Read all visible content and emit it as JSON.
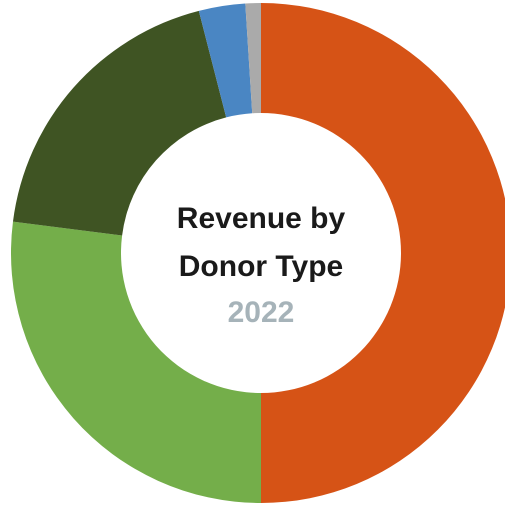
{
  "chart_data": {
    "type": "donut",
    "title": "Revenue by Donor Type",
    "subtitle": "2022",
    "categories": [
      null,
      null,
      null,
      null,
      null
    ],
    "values": [
      50,
      27,
      19,
      3,
      1
    ],
    "colors": [
      "#d65316",
      "#74ae4a",
      "#3f5423",
      "#4a86c3",
      "#aaaaaa"
    ]
  }
}
